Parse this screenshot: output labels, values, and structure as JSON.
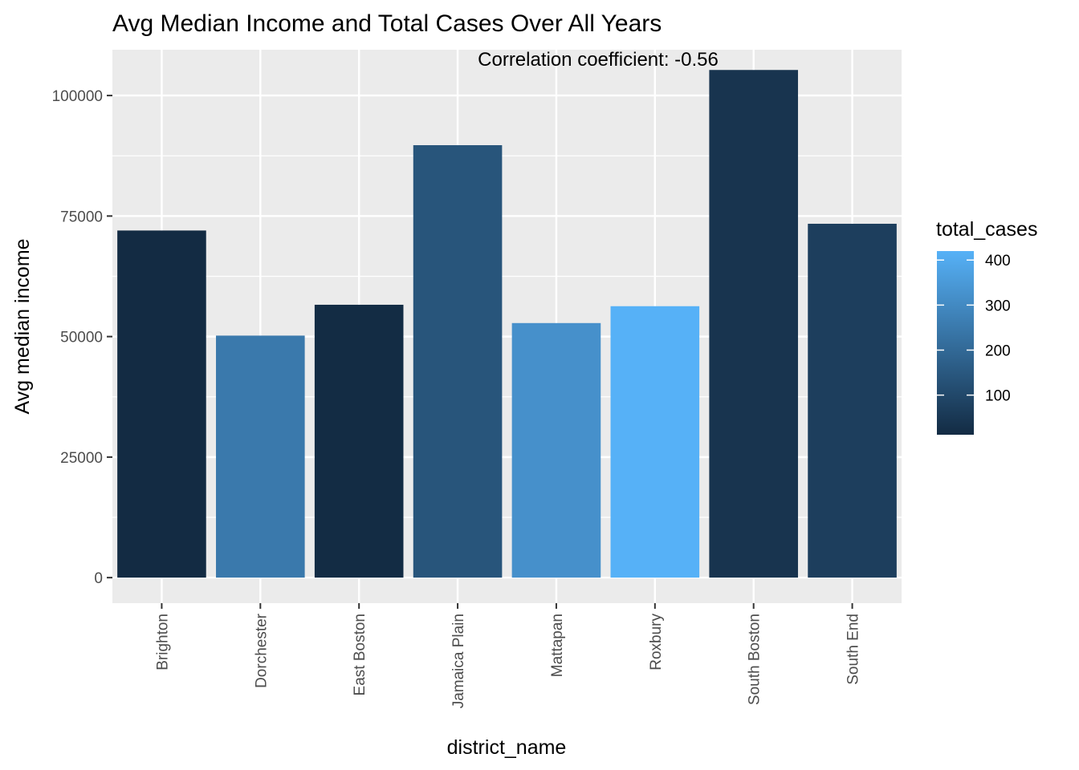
{
  "chart_data": {
    "type": "bar",
    "title": "Avg Median Income and Total Cases Over All Years",
    "annotation": "Correlation coefficient:  -0.56",
    "xlabel": "district_name",
    "ylabel": "Avg median income",
    "categories": [
      "Brighton",
      "Dorchester",
      "East Boston",
      "Jamaica Plain",
      "Mattapan",
      "Roxbury",
      "South Boston",
      "South End"
    ],
    "values": [
      72000,
      50200,
      56600,
      89700,
      52800,
      56300,
      105300,
      73400
    ],
    "fill_values": [
      12,
      250,
      15,
      140,
      320,
      420,
      40,
      70
    ],
    "ylim": [
      -5300,
      109500
    ],
    "y_ticks": [
      0,
      25000,
      50000,
      75000,
      100000
    ],
    "y_tick_labels": [
      "0",
      "25000",
      "50000",
      "75000",
      "100000"
    ],
    "legend": {
      "title": "total_cases",
      "range": [
        12,
        420
      ],
      "ticks": [
        100,
        200,
        300,
        400
      ],
      "tick_labels": [
        "100",
        "200",
        "300",
        "400"
      ],
      "color_low": "#132B43",
      "color_high": "#56B1F7",
      "placement": "right"
    },
    "grid": true,
    "panel_background": "#EBEBEB",
    "x_label_rotation": "vertical"
  }
}
